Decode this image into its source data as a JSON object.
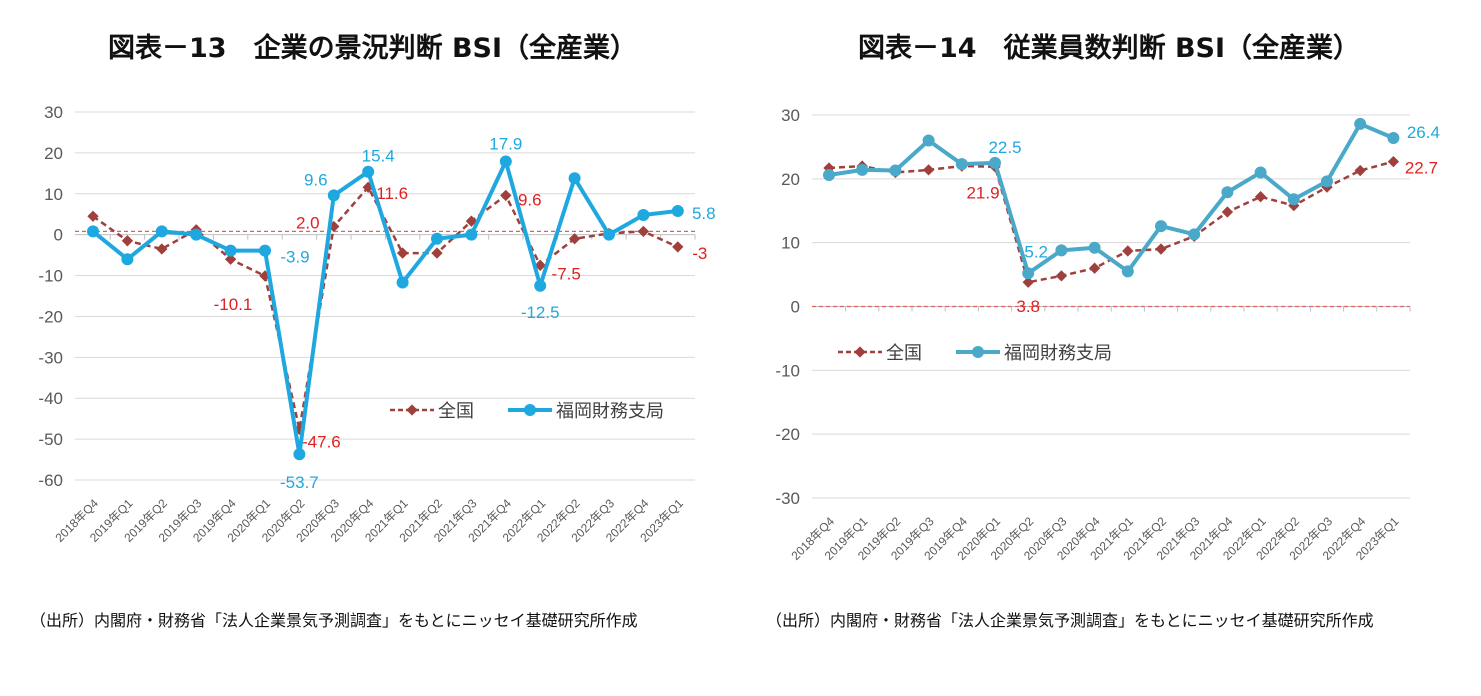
{
  "chart_data": [
    {
      "type": "line",
      "title": "図表－13　企業の景況判断 BSI（全産業）",
      "categories": [
        "2018年Q4",
        "2019年Q1",
        "2019年Q2",
        "2019年Q3",
        "2019年Q4",
        "2020年Q1",
        "2020年Q2",
        "2020年Q3",
        "2020年Q4",
        "2021年Q1",
        "2021年Q2",
        "2021年Q3",
        "2021年Q4",
        "2022年Q1",
        "2022年Q2",
        "2022年Q3",
        "2022年Q4",
        "2023年Q1"
      ],
      "ylim": [
        -60,
        30
      ],
      "yticks": [
        30,
        20,
        10,
        0,
        -10,
        -20,
        -30,
        -40,
        -50,
        -60
      ],
      "grid": true,
      "legend": "bottom-right",
      "reference_line": 0.8,
      "series": [
        {
          "name": "全国",
          "color": "#a0403c",
          "style": "dashed-diamond",
          "values": [
            4.5,
            -1.5,
            -3.5,
            1.2,
            -6.0,
            -10.1,
            -47.6,
            2.0,
            11.6,
            -4.5,
            -4.5,
            3.3,
            9.6,
            -7.5,
            -1.0,
            0.3,
            0.8,
            -3.0
          ],
          "labels": {
            "5": "-10.1",
            "6": "-47.6",
            "7": "2.0",
            "8": "11.6",
            "12": "9.6",
            "13": "-7.5",
            "17": "-3"
          }
        },
        {
          "name": "福岡財務支局",
          "color": "#1fa8e0",
          "style": "solid-circle",
          "values": [
            0.8,
            -6.0,
            0.8,
            0.0,
            -3.9,
            -3.9,
            -53.7,
            9.6,
            15.4,
            -11.7,
            -1.0,
            0.0,
            17.9,
            -12.5,
            13.8,
            0.0,
            4.8,
            5.8
          ],
          "labels": {
            "5": "-3.9",
            "6": "-53.7",
            "7": "9.6",
            "8": "15.4",
            "12": "17.9",
            "13": "-12.5",
            "17": "5.8"
          }
        }
      ]
    },
    {
      "type": "line",
      "title": "図表－14　従業員数判断 BSI（全産業）",
      "categories": [
        "2018年Q4",
        "2019年Q1",
        "2019年Q2",
        "2019年Q3",
        "2019年Q4",
        "2020年Q1",
        "2020年Q2",
        "2020年Q3",
        "2020年Q4",
        "2021年Q1",
        "2021年Q2",
        "2021年Q3",
        "2021年Q4",
        "2022年Q1",
        "2022年Q2",
        "2022年Q3",
        "2022年Q4",
        "2023年Q1"
      ],
      "ylim": [
        -30,
        30
      ],
      "yticks": [
        30,
        20,
        10,
        0,
        -10,
        -20,
        -30
      ],
      "grid": true,
      "legend": "middle-left",
      "reference_line": 0,
      "series": [
        {
          "name": "全国",
          "color": "#a0403c",
          "style": "dashed-diamond",
          "values": [
            21.7,
            22.0,
            21.0,
            21.4,
            22.0,
            21.9,
            3.8,
            4.8,
            6.0,
            8.7,
            9.0,
            11.0,
            14.8,
            17.2,
            15.8,
            18.7,
            21.3,
            22.7
          ],
          "labels": {
            "5": "21.9",
            "6": "3.8",
            "17": "22.7"
          }
        },
        {
          "name": "福岡財務支局",
          "color": "#4aa8c8",
          "style": "solid-circle",
          "values": [
            20.6,
            21.4,
            21.3,
            26.0,
            22.3,
            22.5,
            5.2,
            8.8,
            9.2,
            5.5,
            12.6,
            11.3,
            17.9,
            21.0,
            16.8,
            19.6,
            28.6,
            26.4
          ],
          "labels": {
            "5": "22.5",
            "6": "5.2",
            "17": "26.4"
          }
        }
      ]
    }
  ],
  "notes": [
    "（出所）内閣府・財務省「法人企業景気予測調査」をもとにニッセイ基礎研究所作成",
    "（出所）内閣府・財務省「法人企業景気予測調査」をもとにニッセイ基礎研究所作成"
  ]
}
